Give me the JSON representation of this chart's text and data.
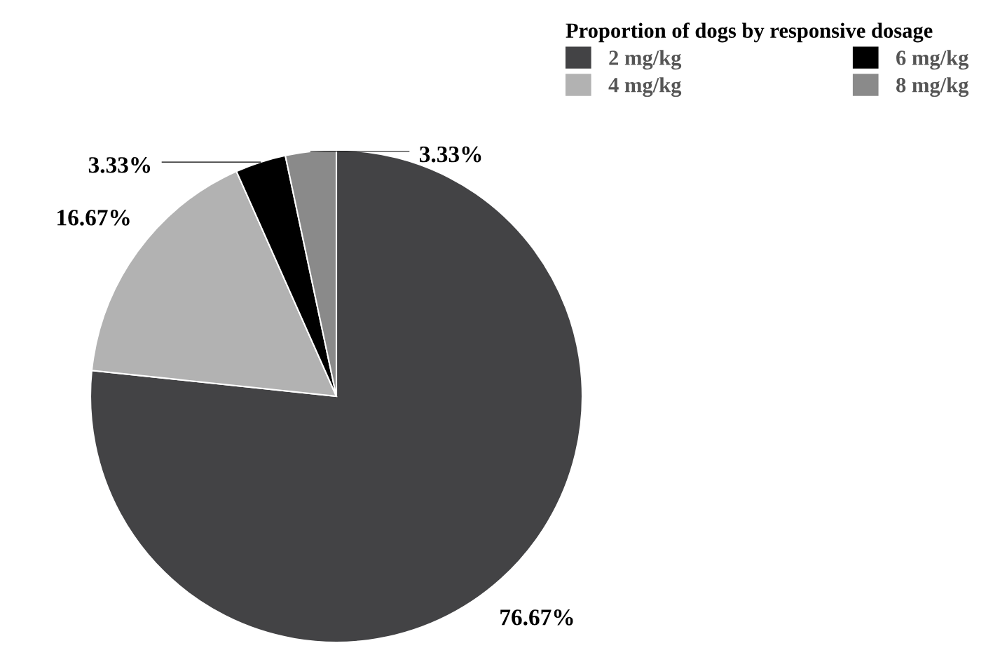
{
  "chart_data": {
    "type": "pie",
    "legend_title": "Proportion of dogs by responsive dosage",
    "categories": [
      "2 mg/kg",
      "4 mg/kg",
      "6 mg/kg",
      "8 mg/kg"
    ],
    "values": [
      76.67,
      16.67,
      3.33,
      3.33
    ],
    "colors": [
      "#434345",
      "#b2b2b2",
      "#000000",
      "#8a8a8a"
    ],
    "value_labels": [
      "76.67%",
      "16.67%",
      "3.33%",
      "3.33%"
    ],
    "legend": "top right"
  }
}
